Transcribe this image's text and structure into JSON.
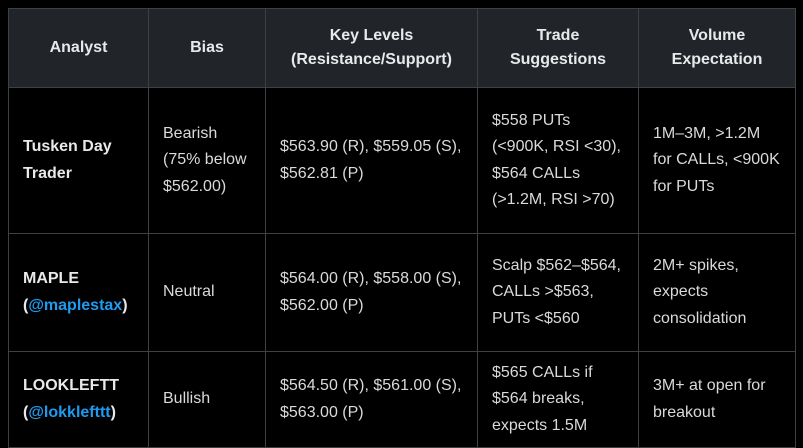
{
  "theme": {
    "page_bg": "#000000",
    "header_bg": "#212529",
    "cell_bg": "#000000",
    "border_color": "#3d4045",
    "header_text_color": "#e7e9ea",
    "body_text_color": "#d9dadb",
    "link_color": "#1d9bf0"
  },
  "table": {
    "columns": [
      {
        "label": "Analyst"
      },
      {
        "label": "Bias"
      },
      {
        "label": "Key Levels (Resistance/Support)"
      },
      {
        "label": "Trade Suggestions"
      },
      {
        "label": "Volume Expectation"
      }
    ],
    "rows": [
      {
        "analyst_name": "Tusken Day Trader",
        "bias": "Bearish (75% below $562.00)",
        "key_levels": "$563.90 (R), $559.05 (S), $562.81 (P)",
        "trade_suggestions": "$558 PUTs (<900K, RSI <30), $564 CALLs (>1.2M, RSI >70)",
        "volume_expectation": "1M–3M, >1.2M for CALLs, <900K for PUTs"
      },
      {
        "analyst_name": "MAPLE (",
        "analyst_handle": "@maplestax",
        "analyst_close": ")",
        "bias": "Neutral",
        "key_levels": "$564.00 (R), $558.00 (S), $562.00 (P)",
        "trade_suggestions": "Scalp $562–$564, CALLs >$563, PUTs <$560",
        "volume_expectation": "2M+ spikes, expects consolidation"
      },
      {
        "analyst_name": "LOOKLEFTT (",
        "analyst_handle": "@lokklefttt",
        "analyst_close": ")",
        "bias": "Bullish",
        "key_levels": "$564.50 (R), $561.00 (S), $563.00 (P)",
        "trade_suggestions": "$565 CALLs if $564 breaks, expects 1.5M",
        "volume_expectation": "3M+ at open for breakout"
      }
    ]
  }
}
